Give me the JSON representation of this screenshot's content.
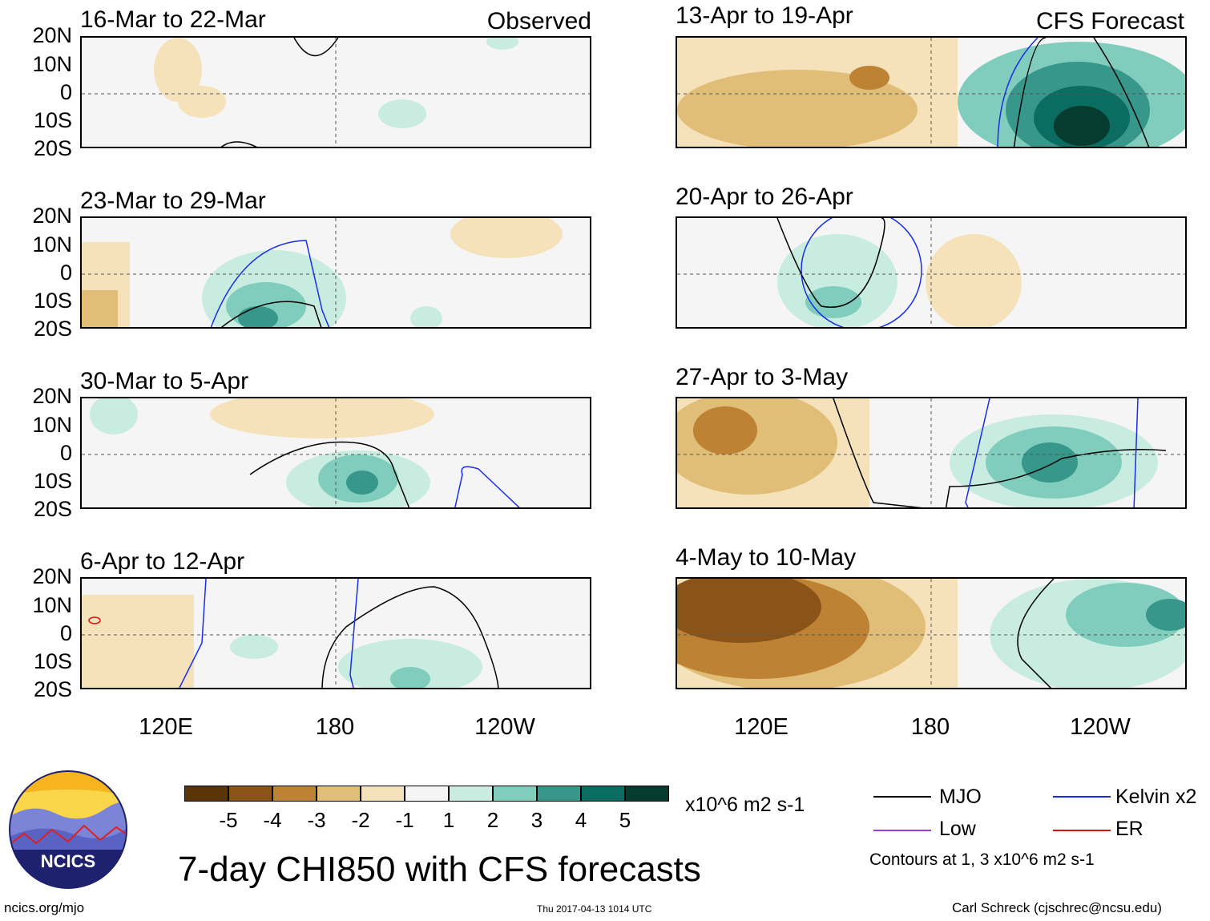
{
  "chart_data": {
    "type": "heatmap",
    "title": "7-day CHI850 with CFS forecasts",
    "units": "x10^6 m2 s-1",
    "y_axis": {
      "labels": [
        "20N",
        "10N",
        "0",
        "10S",
        "20S"
      ],
      "range": [
        -20,
        20
      ]
    },
    "x_axis": {
      "labels": [
        "120E",
        "180",
        "120W"
      ],
      "range_deg_east": [
        90,
        270
      ]
    },
    "colorbar": {
      "ticks": [
        "-5",
        "-4",
        "-3",
        "-2",
        "-1",
        "1",
        "2",
        "3",
        "4",
        "5"
      ],
      "colors": [
        "#5a3507",
        "#8a5418",
        "#bd8234",
        "#e1be78",
        "#f5e2bb",
        "#f5f5f5",
        "#c9ece1",
        "#80cdbd",
        "#37978a",
        "#0b6d61",
        "#063b30"
      ]
    },
    "contour_legend": [
      {
        "label": "MJO",
        "color": "#000000"
      },
      {
        "label": "Kelvin x2",
        "color": "#1a2ee6"
      },
      {
        "label": "Low",
        "color": "#9a3ce0"
      },
      {
        "label": "ER",
        "color": "#e01010"
      }
    ],
    "contour_note": "Contours at 1, 3 x10^6 m2 s-1",
    "panels_observed": [
      {
        "period": "16-Mar to 22-Mar",
        "label": "Observed"
      },
      {
        "period": "23-Mar to 29-Mar",
        "label": ""
      },
      {
        "period": "30-Mar to 5-Apr",
        "label": ""
      },
      {
        "period": "6-Apr to 12-Apr",
        "label": ""
      }
    ],
    "panels_forecast": [
      {
        "period": "13-Apr to 19-Apr",
        "label": "CFS Forecast"
      },
      {
        "period": "20-Apr to 26-Apr",
        "label": ""
      },
      {
        "period": "27-Apr to 3-May",
        "label": ""
      },
      {
        "period": "4-May to 10-May",
        "label": ""
      }
    ]
  },
  "footer": {
    "logo_text": "NCICS",
    "website": "ncics.org/mjo",
    "timestamp": "Thu 2017-04-13 1014 UTC",
    "credit": "Carl Schreck (cjschrec@ncsu.edu)"
  }
}
